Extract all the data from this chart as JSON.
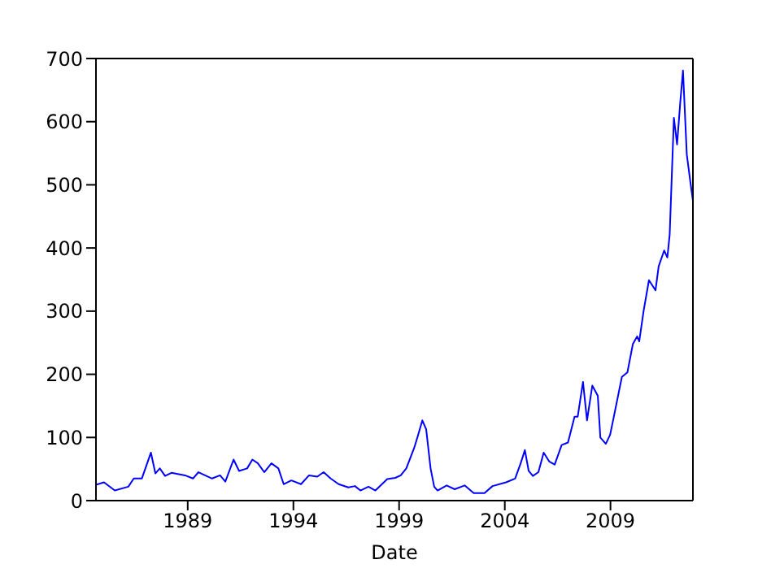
{
  "chart_data": {
    "type": "line",
    "xlabel": "Date",
    "xlim": [
      1984.66,
      2012.9
    ],
    "xticks": [
      1989,
      1994,
      1999,
      2004,
      2009
    ],
    "ylim": [
      0,
      700
    ],
    "yticks": [
      0,
      100,
      200,
      300,
      400,
      500,
      600,
      700
    ],
    "grid": false,
    "legend": false,
    "marker": "none",
    "line_style": "solid",
    "series": [
      {
        "color": "#0000ff",
        "x": [
          1984.66,
          1985.04,
          1985.55,
          1986.19,
          1986.45,
          1986.83,
          1987.26,
          1987.47,
          1987.68,
          1987.93,
          1988.23,
          1988.87,
          1989.25,
          1989.51,
          1989.82,
          1990.15,
          1990.53,
          1990.78,
          1991.17,
          1991.43,
          1991.81,
          1992.06,
          1992.32,
          1992.62,
          1992.96,
          1993.29,
          1993.54,
          1993.9,
          1994.36,
          1994.74,
          1995.13,
          1995.43,
          1995.76,
          1996.14,
          1996.6,
          1996.91,
          1997.17,
          1997.55,
          1997.88,
          1998.19,
          1998.44,
          1998.82,
          1999.08,
          1999.34,
          1999.72,
          1999.9,
          2000.1,
          2000.28,
          2000.49,
          2000.66,
          2000.82,
          2001.25,
          2001.63,
          2002.1,
          2002.53,
          2003.04,
          2003.42,
          2004.06,
          2004.49,
          2004.75,
          2004.95,
          2005.13,
          2005.33,
          2005.59,
          2005.84,
          2006.1,
          2006.36,
          2006.69,
          2006.99,
          2007.3,
          2007.45,
          2007.7,
          2007.89,
          2008.14,
          2008.4,
          2008.52,
          2008.78,
          2008.98,
          2009.16,
          2009.54,
          2009.8,
          2010.06,
          2010.26,
          2010.36,
          2010.57,
          2010.82,
          2011.13,
          2011.28,
          2011.54,
          2011.69,
          2011.8,
          2012.0,
          2012.15,
          2012.3,
          2012.43,
          2012.61,
          2012.8,
          2012.9
        ],
        "values": [
          25,
          29,
          16,
          22,
          35,
          35,
          76,
          43,
          51,
          39,
          44,
          40,
          35,
          45,
          40,
          35,
          40,
          30,
          65,
          47,
          51,
          65,
          59,
          45,
          59,
          51,
          26,
          32,
          26,
          40,
          38,
          45,
          35,
          26,
          21,
          23,
          16,
          22,
          16,
          26,
          34,
          36,
          40,
          51,
          84,
          104,
          127,
          113,
          51,
          22,
          16,
          24,
          18,
          24,
          12,
          12,
          23,
          29,
          35,
          59,
          80,
          47,
          39,
          45,
          76,
          62,
          57,
          88,
          92,
          133,
          133,
          188,
          127,
          182,
          166,
          100,
          90,
          104,
          133,
          196,
          203,
          248,
          260,
          252,
          301,
          349,
          333,
          371,
          396,
          385,
          421,
          606,
          564,
          630,
          681,
          548,
          499,
          475
        ]
      }
    ]
  }
}
